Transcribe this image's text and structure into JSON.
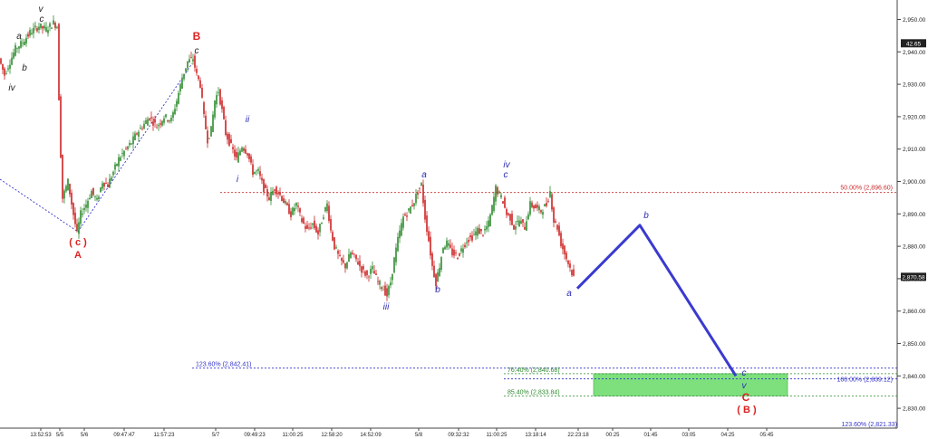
{
  "chart_data": {
    "type": "candlestick",
    "y_axis": {
      "min": 2821.33,
      "max": 2956.0,
      "ticks": [
        "2,950.00",
        "2,940.00",
        "2,930.00",
        "2,920.00",
        "2,910.00",
        "2,900.00",
        "2,890.00",
        "2,880.00",
        "2,870.00",
        "2,860.00",
        "2,850.00",
        "2,840.00",
        "2,830.00"
      ],
      "tick_values": [
        2950,
        2940,
        2930,
        2920,
        2910,
        2900,
        2890,
        2880,
        2870,
        2860,
        2850,
        2840,
        2830
      ],
      "current_labels": [
        {
          "text": "42.65",
          "value": 2942.65
        },
        {
          "text": "2,870.58",
          "value": 2870.58
        }
      ]
    },
    "x_axis": {
      "labels": [
        "13:52:53",
        "5/5",
        "5/6",
        "09:47:47",
        "11:57:23",
        "5/7",
        "09:49:23",
        "11:00:25",
        "12:58:20",
        "14:52:09",
        "5/8",
        "09:32:32",
        "11:00:25",
        "13:18:14",
        "22:23:18",
        "00:25",
        "01:45",
        "03:05",
        "04:25",
        "05:45"
      ]
    },
    "price_path": [
      [
        0,
        2938
      ],
      [
        6,
        2933
      ],
      [
        12,
        2937
      ],
      [
        18,
        2941
      ],
      [
        26,
        2943
      ],
      [
        34,
        2946
      ],
      [
        44,
        2948
      ],
      [
        52,
        2947
      ],
      [
        60,
        2949
      ],
      [
        64,
        2948
      ],
      [
        67,
        2915
      ],
      [
        70,
        2895
      ],
      [
        76,
        2900
      ],
      [
        82,
        2890
      ],
      [
        86,
        2884
      ],
      [
        90,
        2890
      ],
      [
        96,
        2893
      ],
      [
        102,
        2897
      ],
      [
        108,
        2894
      ],
      [
        114,
        2900
      ],
      [
        120,
        2899
      ],
      [
        126,
        2903
      ],
      [
        132,
        2907
      ],
      [
        140,
        2910
      ],
      [
        146,
        2912
      ],
      [
        152,
        2915
      ],
      [
        158,
        2917
      ],
      [
        166,
        2920
      ],
      [
        174,
        2917
      ],
      [
        182,
        2920
      ],
      [
        190,
        2919
      ],
      [
        196,
        2925
      ],
      [
        202,
        2932
      ],
      [
        208,
        2937
      ],
      [
        214,
        2938
      ],
      [
        218,
        2933
      ],
      [
        222,
        2930
      ],
      [
        226,
        2920
      ],
      [
        230,
        2913
      ],
      [
        234,
        2916
      ],
      [
        238,
        2925
      ],
      [
        242,
        2928
      ],
      [
        246,
        2922
      ],
      [
        250,
        2915
      ],
      [
        256,
        2911
      ],
      [
        262,
        2907
      ],
      [
        268,
        2911
      ],
      [
        274,
        2909
      ],
      [
        280,
        2903
      ],
      [
        286,
        2903
      ],
      [
        292,
        2898
      ],
      [
        298,
        2895
      ],
      [
        304,
        2898
      ],
      [
        310,
        2896
      ],
      [
        316,
        2893
      ],
      [
        322,
        2890
      ],
      [
        328,
        2893
      ],
      [
        334,
        2888
      ],
      [
        340,
        2885
      ],
      [
        346,
        2887
      ],
      [
        352,
        2884
      ],
      [
        358,
        2890
      ],
      [
        362,
        2893
      ],
      [
        366,
        2885
      ],
      [
        370,
        2880
      ],
      [
        376,
        2876
      ],
      [
        382,
        2874
      ],
      [
        388,
        2878
      ],
      [
        394,
        2876
      ],
      [
        400,
        2873
      ],
      [
        406,
        2871
      ],
      [
        412,
        2873
      ],
      [
        418,
        2869
      ],
      [
        424,
        2867
      ],
      [
        428,
        2865
      ],
      [
        432,
        2869
      ],
      [
        436,
        2876
      ],
      [
        440,
        2882
      ],
      [
        446,
        2889
      ],
      [
        452,
        2891
      ],
      [
        458,
        2894
      ],
      [
        462,
        2897
      ],
      [
        466,
        2899
      ],
      [
        470,
        2889
      ],
      [
        474,
        2882
      ],
      [
        478,
        2874
      ],
      [
        482,
        2869
      ],
      [
        486,
        2874
      ],
      [
        490,
        2880
      ],
      [
        494,
        2881
      ],
      [
        500,
        2878
      ],
      [
        506,
        2877
      ],
      [
        510,
        2879
      ],
      [
        516,
        2882
      ],
      [
        522,
        2883
      ],
      [
        528,
        2885
      ],
      [
        534,
        2884
      ],
      [
        540,
        2887
      ],
      [
        544,
        2892
      ],
      [
        548,
        2898
      ],
      [
        552,
        2896
      ],
      [
        556,
        2894
      ],
      [
        560,
        2890
      ],
      [
        564,
        2889
      ],
      [
        568,
        2886
      ],
      [
        574,
        2888
      ],
      [
        580,
        2886
      ],
      [
        586,
        2893
      ],
      [
        592,
        2892
      ],
      [
        598,
        2891
      ],
      [
        604,
        2893
      ],
      [
        608,
        2897
      ],
      [
        612,
        2888
      ],
      [
        616,
        2886
      ],
      [
        620,
        2881
      ],
      [
        624,
        2878
      ],
      [
        628,
        2875
      ],
      [
        632,
        2872
      ],
      [
        634,
        2870.6
      ]
    ],
    "projection": [
      {
        "label": "a",
        "value": 2867
      },
      {
        "label": "b",
        "value": 2886.5
      },
      {
        "label": "c",
        "value": 2840
      }
    ],
    "levels": [
      {
        "text": "50.00% (2,896.60)",
        "value": 2896.6,
        "color": "#cc2b2b"
      },
      {
        "text": "123.60% (2,842.41)",
        "value": 2842.41,
        "color": "#3333cc"
      },
      {
        "text": "76.40% (2,840.68)",
        "value": 2840.68,
        "color": "#2e8b2e"
      },
      {
        "text": "100.00% (2,839.12)",
        "value": 2839.12,
        "color": "#3333cc"
      },
      {
        "text": "85.40% (2,833.84)",
        "value": 2833.84,
        "color": "#2e8b2e"
      },
      {
        "text": "123.60% (2,821.33)",
        "value": 2821.33,
        "color": "#3333cc"
      }
    ],
    "target_zone": {
      "from": 2833.84,
      "to": 2840.68,
      "color": "#7de07d"
    },
    "wave_labels": [
      {
        "text": "v",
        "color": "#222222",
        "italic": true
      },
      {
        "text": "c",
        "color": "#222222",
        "italic": true
      },
      {
        "text": "a",
        "color": "#222222",
        "italic": true
      },
      {
        "text": "b",
        "color": "#222222",
        "italic": true
      },
      {
        "text": "iv",
        "color": "#222222",
        "italic": true
      },
      {
        "text": "B",
        "color": "#dd2222",
        "italic": false
      },
      {
        "text": "c",
        "color": "#222222",
        "italic": true
      },
      {
        "text": "( c )",
        "color": "#dd2222",
        "italic": false
      },
      {
        "text": "A",
        "color": "#dd2222",
        "italic": false
      },
      {
        "text": "ii",
        "color": "#2b2bb3",
        "italic": true
      },
      {
        "text": "i",
        "color": "#2b2bb3",
        "italic": true
      },
      {
        "text": "iii",
        "color": "#2b2bb3",
        "italic": true
      },
      {
        "text": "a",
        "color": "#2b2bb3",
        "italic": true
      },
      {
        "text": "b",
        "color": "#2b2bb3",
        "italic": true
      },
      {
        "text": "iv",
        "color": "#2b2bb3",
        "italic": true
      },
      {
        "text": "c",
        "color": "#2b2bb3",
        "italic": true
      },
      {
        "text": "a",
        "color": "#2b2bb3",
        "italic": true
      },
      {
        "text": "b",
        "color": "#2b2bb3",
        "italic": true
      },
      {
        "text": "c",
        "color": "#2b2bb3",
        "italic": true
      },
      {
        "text": "v",
        "color": "#2b2bb3",
        "italic": true
      },
      {
        "text": "C",
        "color": "#dd2222",
        "italic": false
      },
      {
        "text": "( B )",
        "color": "#dd2222",
        "italic": false
      }
    ],
    "colors": {
      "up": "#2e8b2e",
      "down": "#cc2222",
      "projection": "#3a3ad0",
      "dotted_blue": "#3333cc"
    }
  }
}
